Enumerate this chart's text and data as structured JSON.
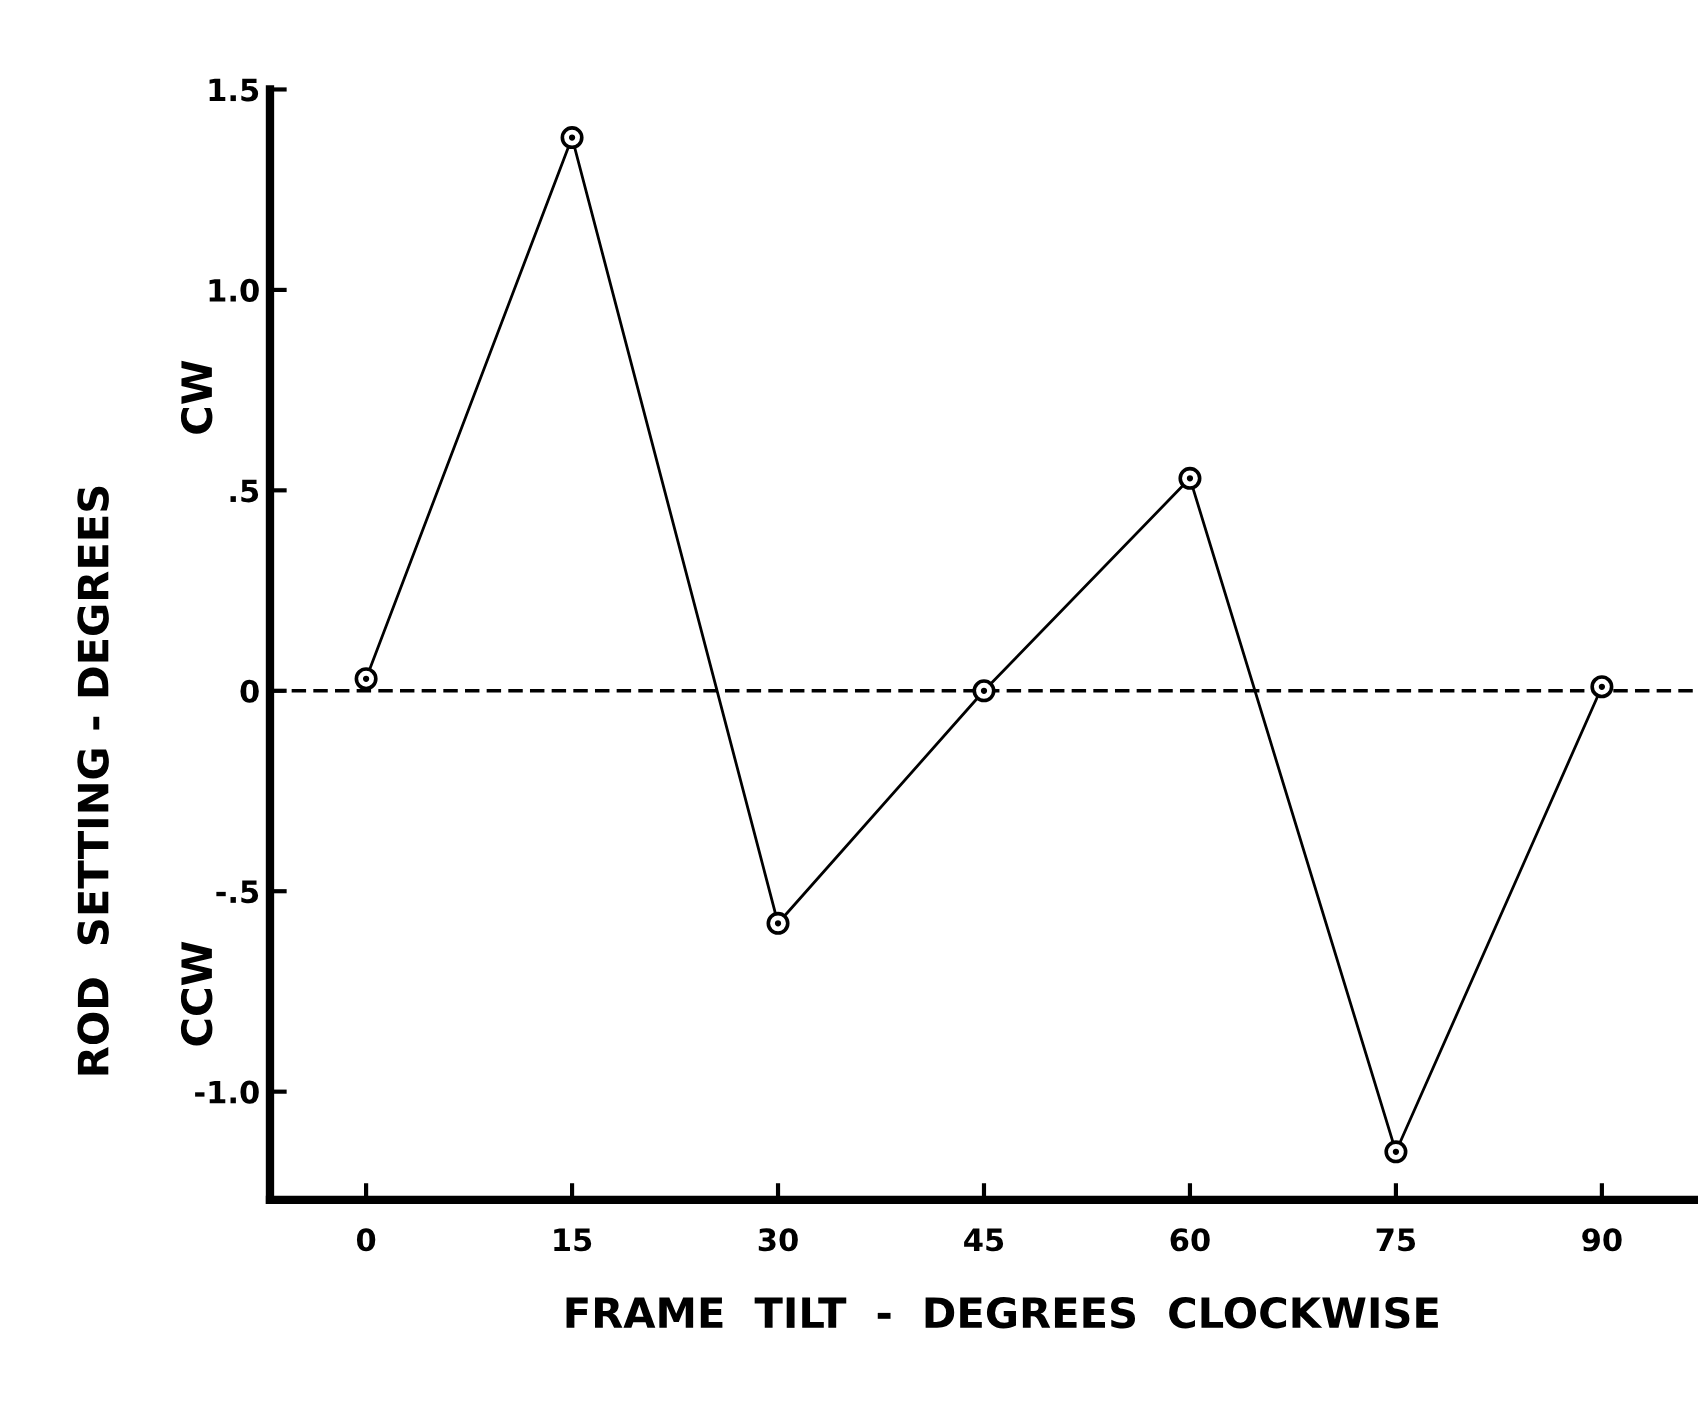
{
  "chart_data": {
    "type": "line",
    "xlabel": "FRAME  TILT  -  DEGREES  CLOCKWISE",
    "ylabel": "ROD  SETTING - DEGREES",
    "annotations": [
      "CW",
      "CCW"
    ],
    "x": [
      0,
      15,
      30,
      45,
      60,
      75,
      90
    ],
    "series": [
      {
        "color": "#000000",
        "values": [
          0.03,
          1.38,
          -0.58,
          0,
          0.53,
          -1.15,
          0.01
        ]
      }
    ],
    "marker": "circle",
    "line_style": "solid",
    "xlim": [
      -7,
      97
    ],
    "xticks": [
      0,
      15,
      30,
      45,
      60,
      75,
      90
    ],
    "ylim": [
      -1.27,
      1.5
    ],
    "yticks": [
      {
        "value": 1.5,
        "label": "1.5"
      },
      {
        "value": 1.0,
        "label": "1.0"
      },
      {
        "value": 0.5,
        "label": ".5"
      },
      0,
      {
        "value": -0.5,
        "label": "-.5"
      },
      {
        "value": -1.0,
        "label": "-1.0"
      }
    ],
    "ref_lines": [
      {
        "axis": "y",
        "value": 0,
        "line_style": "dashed",
        "color": "#000000"
      }
    ],
    "grid": false,
    "legend": false
  }
}
